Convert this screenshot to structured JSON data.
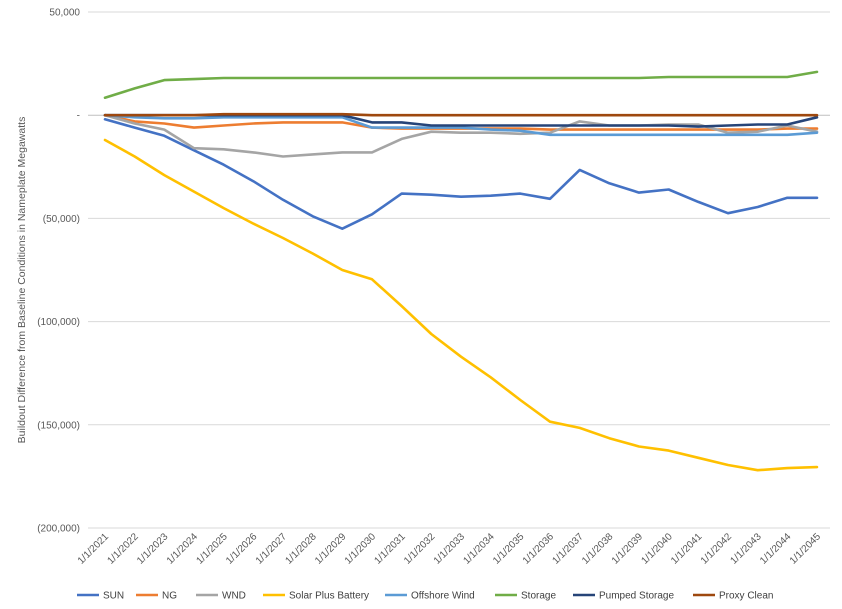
{
  "chart_data": {
    "type": "line",
    "ylabel": "Buildout Difference from Baseline Conditions in Nameplate Megawatts",
    "xlabel": "",
    "ylim": [
      -200000,
      50000
    ],
    "yticks": [
      50000,
      0,
      -50000,
      -100000,
      -150000,
      -200000
    ],
    "ytick_labels": [
      "50,000",
      "-",
      "(50,000)",
      "(100,000)",
      "(150,000)",
      "(200,000)"
    ],
    "grid": true,
    "legend_position": "bottom",
    "categories": [
      "1/1/2021",
      "1/1/2022",
      "1/1/2023",
      "1/1/2024",
      "1/1/2025",
      "1/1/2026",
      "1/1/2027",
      "1/1/2028",
      "1/1/2029",
      "1/1/2030",
      "1/1/2031",
      "1/1/2032",
      "1/1/2033",
      "1/1/2034",
      "1/1/2035",
      "1/1/2036",
      "1/1/2037",
      "1/1/2038",
      "1/1/2039",
      "1/1/2040",
      "1/1/2041",
      "1/1/2042",
      "1/1/2043",
      "1/1/2044",
      "1/1/2045"
    ],
    "series": [
      {
        "name": "SUN",
        "color": "#4472c4",
        "values": [
          -2000,
          -6000,
          -10000,
          -17000,
          -24000,
          -32000,
          -41000,
          -49000,
          -55000,
          -48000,
          -38000,
          -38500,
          -39500,
          -39000,
          -38000,
          -40500,
          -26500,
          -33000,
          -37500,
          -36000,
          -42000,
          -47500,
          -44500,
          -40000,
          -40000
        ]
      },
      {
        "name": "NG",
        "color": "#ed7d31",
        "values": [
          0,
          -3000,
          -4000,
          -6000,
          -5000,
          -4000,
          -3500,
          -3500,
          -3500,
          -6000,
          -6500,
          -6500,
          -6500,
          -6500,
          -6500,
          -7000,
          -7000,
          -7000,
          -7000,
          -7000,
          -7000,
          -7000,
          -7000,
          -6500,
          -6500
        ]
      },
      {
        "name": "WND",
        "color": "#a5a5a5",
        "values": [
          0,
          -4000,
          -7000,
          -16000,
          -16500,
          -18000,
          -20000,
          -19000,
          -18000,
          -18000,
          -11500,
          -8000,
          -8500,
          -8500,
          -9000,
          -8500,
          -3000,
          -5000,
          -5000,
          -4500,
          -4500,
          -8500,
          -8000,
          -5000,
          -8000
        ]
      },
      {
        "name": "Solar Plus Battery",
        "color": "#ffc000",
        "values": [
          -12000,
          -20000,
          -29000,
          -37000,
          -45000,
          -52500,
          -59500,
          -67000,
          -75000,
          -79500,
          -92500,
          -106000,
          -117000,
          -127000,
          -138000,
          -148500,
          -151500,
          -156500,
          -160500,
          -162500,
          -166000,
          -169500,
          -172000,
          -171000,
          -170500
        ]
      },
      {
        "name": "Offshore Wind",
        "color": "#5b9bd5",
        "values": [
          0,
          -1000,
          -1500,
          -1500,
          -1000,
          -1000,
          -1000,
          -1000,
          -1000,
          -6000,
          -6000,
          -6000,
          -6000,
          -7000,
          -7500,
          -9500,
          -9500,
          -9500,
          -9500,
          -9500,
          -9500,
          -9500,
          -9500,
          -9500,
          -8500
        ]
      },
      {
        "name": "Storage",
        "color": "#70ad47",
        "values": [
          8500,
          13000,
          17000,
          17500,
          18000,
          18000,
          18000,
          18000,
          18000,
          18000,
          18000,
          18000,
          18000,
          18000,
          18000,
          18000,
          18000,
          18000,
          18000,
          18500,
          18500,
          18500,
          18500,
          18500,
          21000
        ]
      },
      {
        "name": "Pumped Storage",
        "color": "#264478",
        "values": [
          0,
          0,
          0,
          0,
          0,
          0,
          0,
          0,
          0,
          -3500,
          -3500,
          -5000,
          -5000,
          -5000,
          -5000,
          -5000,
          -5000,
          -5000,
          -5000,
          -5000,
          -5500,
          -5000,
          -4500,
          -4500,
          -1000
        ]
      },
      {
        "name": "Proxy Clean",
        "color": "#9e480e",
        "values": [
          0,
          0,
          0,
          0,
          500,
          500,
          500,
          500,
          500,
          0,
          0,
          0,
          0,
          0,
          0,
          0,
          0,
          0,
          0,
          0,
          0,
          0,
          0,
          0,
          0
        ]
      }
    ]
  }
}
